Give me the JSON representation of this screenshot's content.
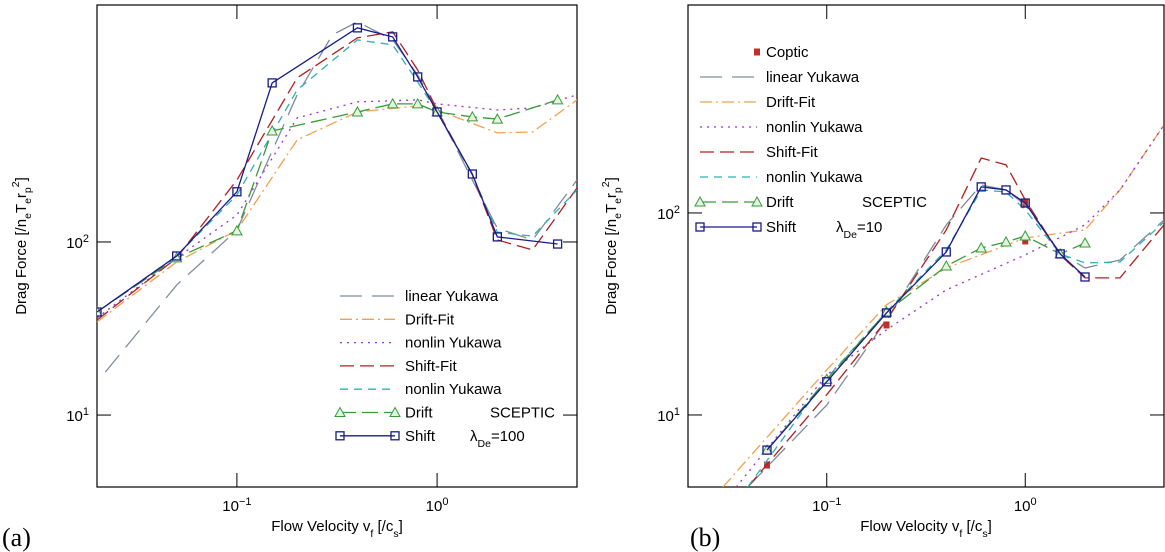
{
  "chart_data": [
    {
      "type": "line",
      "panel_label": "(a)",
      "xlabel": [
        {
          "text": "Flow Velocity v"
        },
        {
          "sub": "f"
        },
        {
          "text": " [/c"
        },
        {
          "sub": "s"
        },
        {
          "text": "]"
        }
      ],
      "ylabel": [
        {
          "text": "Drag Force [/n"
        },
        {
          "sub": "e"
        },
        {
          "text": "T"
        },
        {
          "sub": "e"
        },
        {
          "text": "r"
        },
        {
          "sub": "p"
        },
        {
          "sup": "2"
        },
        {
          "text": "]"
        }
      ],
      "log_x": true,
      "log_y": true,
      "legend_position": "lower right",
      "xlim": [
        0.02,
        5
      ],
      "ylim": [
        3.84,
        2340
      ],
      "xticks": [
        {
          "value": 0.1,
          "label": "10",
          "sup": "−1"
        },
        {
          "value": 1,
          "label": "10",
          "sup": "0"
        }
      ],
      "yticks": [
        {
          "value": 10,
          "label": "10",
          "sup": "1"
        },
        {
          "value": 100,
          "label": "10",
          "sup": "2"
        }
      ],
      "series": [
        {
          "name": "linear Yukawa",
          "color": "#7f8c9c",
          "dash": "22,10",
          "marker": null,
          "x": [
            0.022,
            0.05,
            0.1,
            0.2,
            0.3,
            0.4,
            0.6,
            0.8,
            1,
            1.5,
            2,
            3,
            5
          ],
          "values": [
            17.7,
            56.4,
            117,
            708,
            1574,
            1871,
            1471,
            923,
            579,
            228,
            120,
            102.7,
            228
          ]
        },
        {
          "name": "Drift-Fit",
          "color": "#f0a050",
          "dash": "12,4,2,4",
          "marker": null,
          "x": [
            0.02,
            0.05,
            0.1,
            0.2,
            0.4,
            0.8,
            1,
            2,
            3,
            5
          ],
          "values": [
            34.5,
            76.6,
            117,
            389,
            564,
            611,
            579,
            427,
            432,
            662
          ]
        },
        {
          "name": "nonlin Yukawa",
          "color": "#a030d0",
          "dash": "2,5",
          "marker": null,
          "x": [
            0.02,
            0.05,
            0.1,
            0.2,
            0.4,
            0.8,
            1,
            2,
            3,
            5
          ],
          "values": [
            36.4,
            80.9,
            143,
            521,
            645,
            662,
            628,
            579,
            595,
            708
          ]
        },
        {
          "name": "Shift-Fit",
          "color": "#b02020",
          "dash": "14,6",
          "marker": null,
          "x": [
            0.02,
            0.05,
            0.1,
            0.2,
            0.4,
            0.6,
            0.8,
            1,
            1.5,
            2,
            3,
            5
          ],
          "values": [
            35.4,
            80.9,
            228,
            887,
            1511,
            1637,
            986,
            579,
            244,
            102.7,
            90,
            205
          ]
        },
        {
          "name": "nonlin Yukawa",
          "color": "#30b0b0",
          "dash": "8,6",
          "marker": null,
          "x": [
            0.02,
            0.05,
            0.1,
            0.2,
            0.4,
            0.6,
            0.8,
            1,
            1.5,
            2,
            3,
            5
          ],
          "values": [
            39.4,
            83,
            187,
            756,
            1471,
            1377,
            841,
            564,
            244,
            114,
            108,
            200
          ]
        },
        {
          "name": "Drift",
          "color": "#3a9a3a",
          "dash": "16,6",
          "marker": "triangle",
          "x": [
            0.02,
            0.05,
            0.1,
            0.15,
            0.4,
            0.6,
            0.8,
            1,
            1.5,
            2,
            4
          ],
          "values": [
            39.4,
            80.9,
            116,
            438,
            564,
            628,
            628,
            564,
            528,
            513,
            662
          ]
        },
        {
          "name": "Shift",
          "color": "#1a1a8c",
          "dash": null,
          "marker": "square",
          "x": [
            0.02,
            0.05,
            0.1,
            0.15,
            0.4,
            0.6,
            0.8,
            1,
            1.5,
            2,
            4
          ],
          "values": [
            39.4,
            83,
            195,
            830,
            1726,
            1531,
            899,
            564,
            247,
            107,
            97.3
          ]
        }
      ],
      "annotations": [
        {
          "color": "#3a9a3a",
          "parts": [
            {
              "text": "SCEPTIC"
            }
          ]
        },
        {
          "color": "#1a1a8c",
          "parts": [
            {
              "text": "λ"
            },
            {
              "sub": "De"
            },
            {
              "text": "=100"
            }
          ]
        }
      ]
    },
    {
      "type": "line",
      "panel_label": "(b)",
      "xlabel": [
        {
          "text": "Flow Velocity v"
        },
        {
          "sub": "f"
        },
        {
          "text": " [/c"
        },
        {
          "sub": "s"
        },
        {
          "text": "]"
        }
      ],
      "ylabel": [
        {
          "text": "Drag Force [/n"
        },
        {
          "sub": "e"
        },
        {
          "text": "T"
        },
        {
          "sub": "e"
        },
        {
          "text": "r"
        },
        {
          "sub": "p"
        },
        {
          "sup": "2"
        },
        {
          "text": "]"
        }
      ],
      "log_x": true,
      "log_y": true,
      "legend_position": "upper left",
      "xlim": [
        0.02,
        5
      ],
      "ylim": [
        4.4,
        1070
      ],
      "xticks": [
        {
          "value": 0.1,
          "label": "10",
          "sup": "−1"
        },
        {
          "value": 1,
          "label": "10",
          "sup": "0"
        }
      ],
      "yticks": [
        {
          "value": 10,
          "label": "10",
          "sup": "1"
        },
        {
          "value": 100,
          "label": "10",
          "sup": "2"
        }
      ],
      "series": [
        {
          "name": "Coptic",
          "color": "#c0302a",
          "dash": null,
          "marker": "filled-square",
          "line": false,
          "x": [
            0.05,
            0.2,
            0.2,
            1,
            1
          ],
          "values": [
            5.65,
            27.9,
            32,
            72.7,
            112
          ]
        },
        {
          "name": "linear Yukawa",
          "color": "#7f8c9c",
          "dash": "22,10",
          "marker": null,
          "x": [
            0.04,
            0.1,
            0.2,
            0.4,
            0.6,
            0.8,
            1,
            1.5,
            2,
            3,
            5
          ],
          "values": [
            4.4,
            11.2,
            29.5,
            87.3,
            137.6,
            130,
            109.5,
            63.4,
            53.4,
            58.5,
            92.3
          ]
        },
        {
          "name": "Drift-Fit",
          "color": "#f0a050",
          "dash": "12,4,2,4",
          "marker": null,
          "x": [
            0.03,
            0.1,
            0.2,
            0.4,
            1,
            2,
            3,
            5
          ],
          "values": [
            4.4,
            16.7,
            35.1,
            53.4,
            75.2,
            82.4,
            130,
            272.6
          ]
        },
        {
          "name": "nonlin Yukawa",
          "color": "#a030d0",
          "dash": "2,5",
          "marker": null,
          "x": [
            0.035,
            0.1,
            0.2,
            0.4,
            1,
            2,
            3,
            5
          ],
          "values": [
            4.4,
            15.8,
            26.4,
            41.6,
            62,
            87.3,
            130,
            272.6
          ]
        },
        {
          "name": "Shift-Fit",
          "color": "#b02020",
          "dash": "14,6",
          "marker": null,
          "x": [
            0.04,
            0.1,
            0.2,
            0.4,
            0.6,
            0.8,
            1,
            1.5,
            2,
            3,
            5
          ],
          "values": [
            4.4,
            12.6,
            29.5,
            82.4,
            187,
            173,
            116,
            62,
            47.7,
            47.7,
            87.3
          ]
        },
        {
          "name": "nonlin Yukawa",
          "color": "#30b0b0",
          "dash": "8,6",
          "marker": null,
          "x": [
            0.04,
            0.1,
            0.2,
            0.4,
            0.6,
            0.8,
            1,
            1.5,
            2,
            3,
            5
          ],
          "values": [
            4.4,
            15.2,
            32.4,
            65.6,
            130,
            127,
            103.5,
            62.7,
            56.6,
            57.2,
            90.2
          ]
        },
        {
          "name": "Drift",
          "color": "#3a9a3a",
          "dash": "16,6",
          "marker": "triangle",
          "x": [
            0.05,
            0.1,
            0.2,
            0.4,
            0.6,
            0.8,
            1,
            1.5,
            2
          ],
          "values": [
            6.7,
            15,
            32.4,
            54.6,
            67.1,
            71.8,
            76.9,
            62.7,
            71
          ]
        },
        {
          "name": "Shift",
          "color": "#1a1a8c",
          "dash": null,
          "marker": "square",
          "x": [
            0.05,
            0.1,
            0.2,
            0.4,
            0.6,
            0.8,
            1,
            1.5,
            2
          ],
          "values": [
            6.7,
            14.6,
            32,
            64.1,
            134.6,
            130,
            112,
            62.7,
            48.2
          ]
        }
      ],
      "annotations": [
        {
          "color": "#3a9a3a",
          "parts": [
            {
              "text": "SCEPTIC"
            }
          ]
        },
        {
          "color": "#1a1a8c",
          "parts": [
            {
              "text": "λ"
            },
            {
              "sub": "De"
            },
            {
              "text": "=10"
            }
          ]
        }
      ]
    }
  ]
}
